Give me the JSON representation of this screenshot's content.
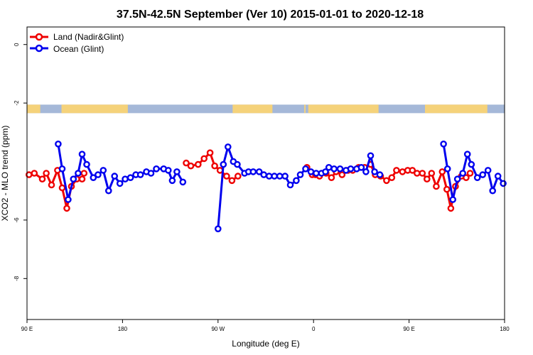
{
  "chart_data": {
    "type": "line",
    "title": "37.5N-42.5N September (Ver 10)   2015-01-01 to 2020-12-18",
    "xlabel": "Longitude (deg E)",
    "ylabel": "XCO2 - MLO trend (ppm)",
    "xlim": [
      90,
      450
    ],
    "ylim": [
      -9.4,
      0.6
    ],
    "x_ticks": [
      {
        "value": 90,
        "label": "90 E"
      },
      {
        "value": 162,
        "label": "180"
      },
      {
        "value": 234,
        "label": "90 W"
      },
      {
        "value": 306,
        "label": "0"
      },
      {
        "value": 378,
        "label": "90 E"
      },
      {
        "value": 450,
        "label": "180"
      }
    ],
    "y_ticks": [
      {
        "value": 0,
        "label": "0"
      },
      {
        "value": -2,
        "label": "-2"
      },
      {
        "value": -6,
        "label": "-6"
      },
      {
        "value": -8,
        "label": "-8"
      }
    ],
    "landmask_y": -2.2,
    "colors": {
      "land_strip": "#f5d27a",
      "ocean_strip": "#a5b8d8"
    },
    "legend_position": "top-left",
    "series": [
      {
        "name": "Land (Nadir&Glint)",
        "color": "#ee0000",
        "segments": [
          [
            [
              91.5,
              -4.45
            ],
            [
              95.5,
              -4.4
            ],
            [
              101.5,
              -4.6
            ],
            [
              104.5,
              -4.4
            ],
            [
              108.5,
              -4.8
            ],
            [
              113,
              -4.3
            ],
            [
              116.5,
              -4.9
            ],
            [
              120,
              -5.6
            ],
            [
              123.5,
              -4.85
            ],
            [
              127.5,
              -4.6
            ],
            [
              131.5,
              -4.6
            ],
            [
              133,
              -4.4
            ]
          ],
          [
            [
              210,
              -4.05
            ],
            [
              213.5,
              -4.15
            ],
            [
              219,
              -4.1
            ],
            [
              223.5,
              -3.9
            ],
            [
              228,
              -3.7
            ],
            [
              231.5,
              -4.15
            ],
            [
              235.5,
              -4.3
            ],
            [
              240.5,
              -4.5
            ],
            [
              244.5,
              -4.65
            ],
            [
              249,
              -4.5
            ]
          ],
          [
            [
              301,
              -4.2
            ],
            [
              305,
              -4.45
            ],
            [
              307.5,
              -4.45
            ],
            [
              310.5,
              -4.5
            ],
            [
              315.5,
              -4.4
            ],
            [
              319.5,
              -4.55
            ],
            [
              323,
              -4.35
            ],
            [
              327.5,
              -4.45
            ],
            [
              332,
              -4.3
            ],
            [
              335.5,
              -4.3
            ],
            [
              340,
              -4.2
            ],
            [
              344.5,
              -4.2
            ],
            [
              349,
              -4.1
            ],
            [
              352.5,
              -4.45
            ],
            [
              356.5,
              -4.5
            ],
            [
              361,
              -4.65
            ],
            [
              365,
              -4.55
            ],
            [
              368.5,
              -4.3
            ],
            [
              373,
              -4.35
            ],
            [
              377,
              -4.3
            ],
            [
              380.5,
              -4.3
            ],
            [
              384,
              -4.4
            ],
            [
              388,
              -4.4
            ],
            [
              391.5,
              -4.6
            ],
            [
              395,
              -4.4
            ],
            [
              398.5,
              -4.85
            ],
            [
              403,
              -4.35
            ],
            [
              406.5,
              -4.95
            ],
            [
              409.5,
              -5.6
            ],
            [
              413,
              -4.85
            ],
            [
              417.5,
              -4.5
            ],
            [
              421,
              -4.55
            ],
            [
              424,
              -4.4
            ]
          ]
        ]
      },
      {
        "name": "Ocean (Glint)",
        "color": "#0000ee",
        "segments": [
          [
            [
              113.5,
              -3.4
            ],
            [
              116.5,
              -4.25
            ],
            [
              121,
              -5.3
            ],
            [
              125,
              -4.6
            ],
            [
              128.5,
              -4.4
            ],
            [
              131.5,
              -3.75
            ],
            [
              135,
              -4.1
            ],
            [
              140,
              -4.55
            ],
            [
              143.5,
              -4.45
            ],
            [
              147.5,
              -4.3
            ],
            [
              151.5,
              -5
            ],
            [
              156,
              -4.5
            ],
            [
              160,
              -4.75
            ],
            [
              164,
              -4.6
            ],
            [
              168,
              -4.55
            ],
            [
              172,
              -4.45
            ],
            [
              175.5,
              -4.45
            ],
            [
              180,
              -4.35
            ],
            [
              183.5,
              -4.4
            ],
            [
              187.5,
              -4.25
            ],
            [
              193,
              -4.25
            ],
            [
              196.5,
              -4.3
            ],
            [
              199.5,
              -4.65
            ],
            [
              203,
              -4.35
            ],
            [
              207.5,
              -4.7
            ]
          ],
          [
            [
              234,
              -6.3
            ],
            [
              238,
              -4.1
            ],
            [
              241.5,
              -3.5
            ],
            [
              245.5,
              -4
            ],
            [
              248.5,
              -4.1
            ],
            [
              254,
              -4.4
            ],
            [
              257,
              -4.35
            ],
            [
              260.5,
              -4.35
            ],
            [
              265,
              -4.35
            ],
            [
              268.5,
              -4.45
            ],
            [
              272.5,
              -4.5
            ],
            [
              276.5,
              -4.5
            ],
            [
              280.5,
              -4.5
            ],
            [
              284.5,
              -4.5
            ],
            [
              288.5,
              -4.8
            ],
            [
              293,
              -4.65
            ],
            [
              296,
              -4.45
            ],
            [
              300,
              -4.25
            ],
            [
              304,
              -4.35
            ],
            [
              308,
              -4.4
            ],
            [
              312,
              -4.4
            ],
            [
              315,
              -4.35
            ],
            [
              317.5,
              -4.2
            ],
            [
              321.5,
              -4.25
            ],
            [
              326,
              -4.25
            ],
            [
              330.5,
              -4.3
            ],
            [
              334,
              -4.25
            ],
            [
              338.5,
              -4.25
            ],
            [
              342,
              -4.2
            ],
            [
              345.5,
              -4.35
            ],
            [
              349,
              -3.8
            ],
            [
              352,
              -4.35
            ],
            [
              356,
              -4.45
            ]
          ],
          [
            [
              404,
              -3.4
            ],
            [
              407,
              -4.25
            ],
            [
              411,
              -5.3
            ],
            [
              414.5,
              -4.6
            ],
            [
              418.5,
              -4.4
            ],
            [
              422,
              -3.75
            ],
            [
              425,
              -4.1
            ],
            [
              429.5,
              -4.55
            ],
            [
              433.5,
              -4.45
            ],
            [
              437.5,
              -4.3
            ],
            [
              441,
              -5
            ],
            [
              445,
              -4.5
            ],
            [
              449,
              -4.75
            ]
          ]
        ]
      }
    ]
  }
}
